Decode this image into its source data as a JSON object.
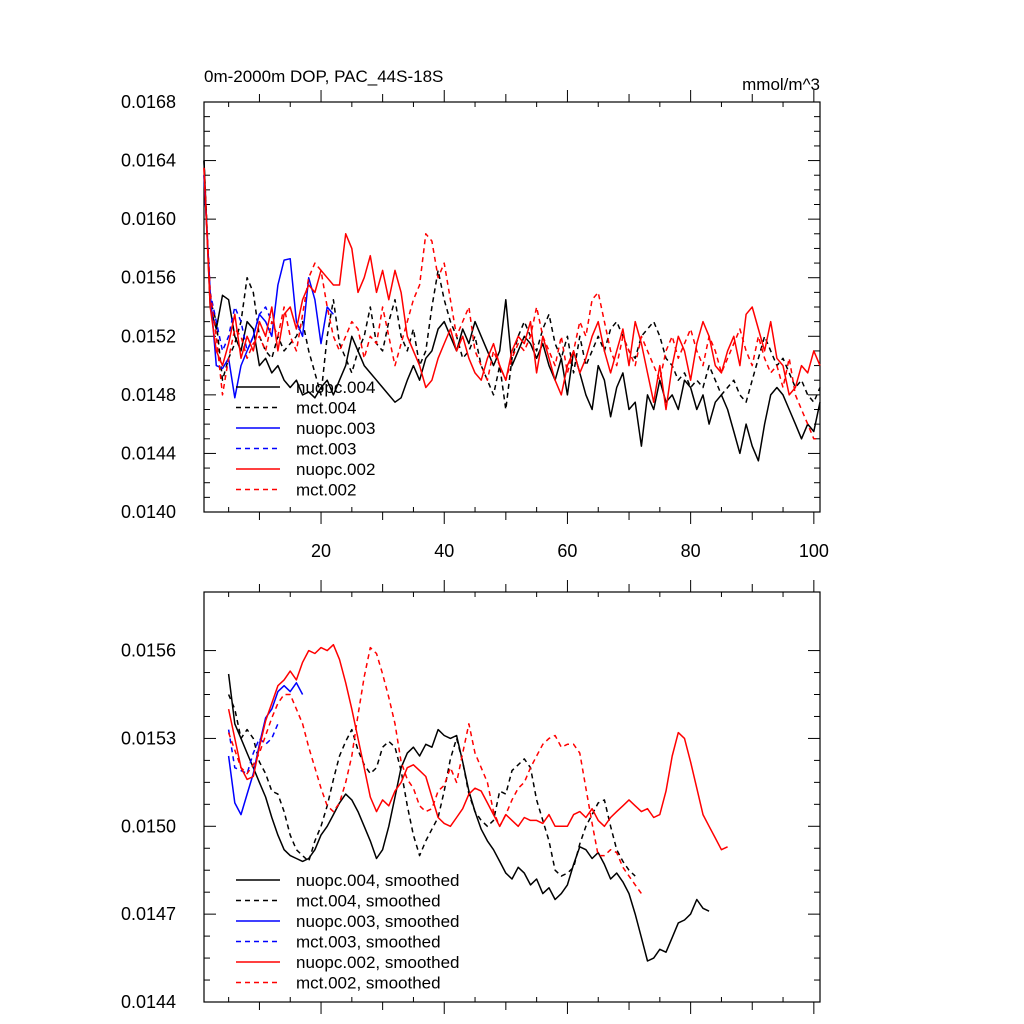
{
  "chart_data": [
    {
      "type": "line",
      "title": "0m-2000m DOP, PAC_44S-18S",
      "units": "mmol/m^3",
      "xlim": [
        1,
        101
      ],
      "ylim": [
        0.014,
        0.0168
      ],
      "xticks": [
        20,
        40,
        60,
        80,
        100
      ],
      "yticks": [
        0.014,
        0.0144,
        0.0148,
        0.0152,
        0.0156,
        0.016,
        0.0164,
        0.0168
      ],
      "ytick_labels": [
        "0.0140",
        "0.0144",
        "0.0148",
        "0.0152",
        "0.0156",
        "0.0160",
        "0.0164",
        "0.0168"
      ],
      "xtick_labels": [
        "20",
        "40",
        "60",
        "80",
        "100"
      ],
      "legend_position": "bottom-left",
      "series": [
        {
          "name": "nuopc.004",
          "color": "#000000",
          "dash": false,
          "x_start": 1,
          "values": [
            0.0164,
            0.0154,
            0.01525,
            0.01548,
            0.01545,
            0.0152,
            0.0151,
            0.0153,
            0.01525,
            0.015,
            0.01505,
            0.01495,
            0.015,
            0.0149,
            0.01485,
            0.0149,
            0.0148,
            0.01482,
            0.01478,
            0.01485,
            0.0149,
            0.0148,
            0.0149,
            0.015,
            0.0152,
            0.0151,
            0.015,
            0.01495,
            0.0149,
            0.01485,
            0.0148,
            0.01475,
            0.01478,
            0.0149,
            0.015,
            0.0149,
            0.01505,
            0.0151,
            0.01525,
            0.0153,
            0.0152,
            0.0151,
            0.01525,
            0.01515,
            0.0153,
            0.0152,
            0.0151,
            0.015,
            0.0151,
            0.01545,
            0.015,
            0.0151,
            0.0152,
            0.01515,
            0.01505,
            0.01515,
            0.015,
            0.0149,
            0.01505,
            0.0148,
            0.0151,
            0.01495,
            0.0148,
            0.0147,
            0.015,
            0.0149,
            0.01465,
            0.01485,
            0.01495,
            0.0147,
            0.01475,
            0.01445,
            0.0148,
            0.0147,
            0.0149,
            0.01475,
            0.0148,
            0.0147,
            0.0149,
            0.01485,
            0.0147,
            0.0148,
            0.0146,
            0.01475,
            0.0148,
            0.0147,
            0.01455,
            0.0144,
            0.0146,
            0.01445,
            0.01435,
            0.0146,
            0.0148,
            0.01485,
            0.0148,
            0.0147,
            0.0146,
            0.0145,
            0.0146,
            0.01455,
            0.01475
          ]
        },
        {
          "name": "mct.004",
          "color": "#000000",
          "dash": true,
          "x_start": 1,
          "values": [
            0.0164,
            0.01545,
            0.0153,
            0.0149,
            0.01505,
            0.01515,
            0.0153,
            0.0156,
            0.0155,
            0.0152,
            0.0151,
            0.01505,
            0.0152,
            0.0151,
            0.01515,
            0.0152,
            0.0153,
            0.0151,
            0.01495,
            0.0148,
            0.0152,
            0.01545,
            0.01515,
            0.01505,
            0.01495,
            0.0151,
            0.0152,
            0.0154,
            0.01515,
            0.0151,
            0.0153,
            0.01545,
            0.0152,
            0.0151,
            0.01525,
            0.015,
            0.0151,
            0.0154,
            0.01565,
            0.01545,
            0.0153,
            0.0152,
            0.01505,
            0.0151,
            0.0152,
            0.015,
            0.0149,
            0.0148,
            0.015,
            0.0147,
            0.01505,
            0.0152,
            0.0153,
            0.0152,
            0.0151,
            0.01525,
            0.01535,
            0.01515,
            0.01505,
            0.0152,
            0.01495,
            0.0152,
            0.015,
            0.0151,
            0.0152,
            0.0151,
            0.01525,
            0.0153,
            0.0152,
            0.0151,
            0.01505,
            0.0152,
            0.01525,
            0.0153,
            0.0152,
            0.01505,
            0.015,
            0.0149,
            0.01495,
            0.01485,
            0.0149,
            0.01485,
            0.015,
            0.0149,
            0.0148,
            0.01485,
            0.0149,
            0.0148,
            0.01475,
            0.0149,
            0.01505,
            0.0152,
            0.0151,
            0.015,
            0.01505,
            0.01495,
            0.01485,
            0.0149,
            0.0148,
            0.01475,
            0.01485
          ]
        },
        {
          "name": "nuopc.003",
          "color": "#0000ff",
          "dash": false,
          "x_start": 1,
          "values": [
            0.0163,
            0.0155,
            0.015,
            0.01498,
            0.01505,
            0.01478,
            0.015,
            0.0151,
            0.0152,
            0.01535,
            0.0153,
            0.0152,
            0.01555,
            0.01572,
            0.01573,
            0.0153,
            0.0152,
            0.0156,
            0.01545,
            0.01515,
            0.0154,
            0.01535
          ]
        },
        {
          "name": "mct.003",
          "color": "#0000ff",
          "dash": true,
          "x_start": 1,
          "values": [
            0.0163,
            0.0155,
            0.0153,
            0.0151,
            0.0152,
            0.0154,
            0.0153,
            0.0151,
            0.0152,
            0.01535,
            0.0154,
            0.0153
          ]
        },
        {
          "name": "nuopc.002",
          "color": "#ff0000",
          "dash": false,
          "x_start": 1,
          "values": [
            0.01635,
            0.0154,
            0.0151,
            0.015,
            0.01515,
            0.01535,
            0.01505,
            0.0152,
            0.0151,
            0.0153,
            0.0152,
            0.0154,
            0.0151,
            0.01535,
            0.0154,
            0.01525,
            0.01545,
            0.01555,
            0.0155,
            0.01565,
            0.0156,
            0.01555,
            0.01555,
            0.0159,
            0.0158,
            0.0155,
            0.0156,
            0.01575,
            0.0155,
            0.01565,
            0.01545,
            0.01565,
            0.0155,
            0.0152,
            0.0151,
            0.015,
            0.01485,
            0.0149,
            0.01505,
            0.01515,
            0.01525,
            0.0151,
            0.0152,
            0.01505,
            0.01495,
            0.0149,
            0.01505,
            0.01515,
            0.015,
            0.0149,
            0.0151,
            0.0152,
            0.01515,
            0.0153,
            0.01495,
            0.0152,
            0.01505,
            0.0149,
            0.0148,
            0.015,
            0.0151,
            0.01495,
            0.01505,
            0.0152,
            0.0153,
            0.0151,
            0.01495,
            0.0151,
            0.01525,
            0.015,
            0.0153,
            0.01515,
            0.01495,
            0.01475,
            0.015,
            0.0147,
            0.015,
            0.0152,
            0.0151,
            0.0149,
            0.01515,
            0.0153,
            0.0152,
            0.015,
            0.01495,
            0.0151,
            0.0152,
            0.015,
            0.01535,
            0.0154,
            0.01525,
            0.0151,
            0.0153,
            0.01505,
            0.015,
            0.0148,
            0.01485,
            0.015,
            0.01495,
            0.0151,
            0.015
          ]
        },
        {
          "name": "mct.002",
          "color": "#ff0000",
          "dash": true,
          "x_start": 1,
          "values": [
            0.01635,
            0.0155,
            0.0152,
            0.0148,
            0.01505,
            0.01525,
            0.0152,
            0.01505,
            0.01515,
            0.0152,
            0.0151,
            0.0153,
            0.0152,
            0.0154,
            0.0152,
            0.0151,
            0.01535,
            0.0156,
            0.0157,
            0.01565,
            0.0154,
            0.0152,
            0.0151,
            0.0152,
            0.0153,
            0.01525,
            0.01505,
            0.0152,
            0.01515,
            0.0154,
            0.0152,
            0.015,
            0.01515,
            0.0153,
            0.01545,
            0.01555,
            0.0159,
            0.01585,
            0.0156,
            0.0157,
            0.01545,
            0.0152,
            0.0153,
            0.0154,
            0.0151,
            0.015,
            0.0149,
            0.0151,
            0.015,
            0.0149,
            0.01505,
            0.01515,
            0.0151,
            0.0152,
            0.0154,
            0.0152,
            0.0151,
            0.015,
            0.0152,
            0.01495,
            0.0151,
            0.0153,
            0.0152,
            0.01545,
            0.0155,
            0.0153,
            0.0151,
            0.015,
            0.0152,
            0.0151,
            0.015,
            0.0152,
            0.0151,
            0.015,
            0.0149,
            0.0151,
            0.0152,
            0.01505,
            0.01515,
            0.01525,
            0.0151,
            0.015,
            0.0152,
            0.0151,
            0.01495,
            0.01505,
            0.01515,
            0.01525,
            0.0151,
            0.015,
            0.0152,
            0.01505,
            0.01495,
            0.015,
            0.01485,
            0.01505,
            0.0148,
            0.0147,
            0.0146,
            0.0145,
            0.0145
          ]
        }
      ]
    },
    {
      "type": "line",
      "xlim": [
        1,
        101
      ],
      "ylim": [
        0.0144,
        0.0158
      ],
      "xticks": [
        20,
        40,
        60,
        80,
        100
      ],
      "yticks": [
        0.0144,
        0.0147,
        0.015,
        0.0153,
        0.0156
      ],
      "ytick_labels": [
        "0.0144",
        "0.0147",
        "0.0150",
        "0.0153",
        "0.0156"
      ],
      "legend_position": "bottom-left",
      "series": [
        {
          "name": "nuopc.004, smoothed",
          "color": "#000000",
          "dash": false,
          "x_start": 5,
          "values": [
            0.01552,
            0.01535,
            0.0153,
            0.01525,
            0.0152,
            0.01515,
            0.0151,
            0.01503,
            0.01497,
            0.01492,
            0.0149,
            0.01489,
            0.01488,
            0.01489,
            0.01492,
            0.01497,
            0.015,
            0.01504,
            0.01508,
            0.01511,
            0.01509,
            0.01505,
            0.015,
            0.01495,
            0.01489,
            0.01492,
            0.015,
            0.0151,
            0.0152,
            0.01525,
            0.01527,
            0.01524,
            0.01528,
            0.01527,
            0.01533,
            0.01531,
            0.0153,
            0.01531,
            0.01522,
            0.01512,
            0.01505,
            0.01499,
            0.01495,
            0.01492,
            0.01488,
            0.01484,
            0.01482,
            0.01486,
            0.01484,
            0.0148,
            0.01482,
            0.01477,
            0.01479,
            0.01475,
            0.01477,
            0.0148,
            0.01487,
            0.01493,
            0.01492,
            0.01489,
            0.01491,
            0.01487,
            0.01482,
            0.01484,
            0.01481,
            0.01477,
            0.0147,
            0.01462,
            0.01454,
            0.01455,
            0.01458,
            0.01457,
            0.01462,
            0.01467,
            0.01468,
            0.0147,
            0.01475,
            0.01472,
            0.01471
          ]
        },
        {
          "name": "mct.004, smoothed",
          "color": "#000000",
          "dash": true,
          "x_start": 5,
          "values": [
            0.01545,
            0.0154,
            0.0153,
            0.01533,
            0.0153,
            0.01522,
            0.01518,
            0.01512,
            0.01511,
            0.01505,
            0.01497,
            0.01492,
            0.0149,
            0.01488,
            0.01495,
            0.015,
            0.01507,
            0.01516,
            0.01524,
            0.01529,
            0.01533,
            0.01526,
            0.01521,
            0.01518,
            0.0152,
            0.01527,
            0.01529,
            0.01527,
            0.01519,
            0.01507,
            0.01497,
            0.0149,
            0.01495,
            0.01499,
            0.01503,
            0.01512,
            0.01523,
            0.0153,
            0.01522,
            0.01511,
            0.01505,
            0.01502,
            0.015,
            0.01502,
            0.01512,
            0.01511,
            0.01519,
            0.01521,
            0.01523,
            0.0152,
            0.01509,
            0.01502,
            0.01495,
            0.01485,
            0.01483,
            0.01484,
            0.01486,
            0.01494,
            0.015,
            0.01504,
            0.01508,
            0.01509,
            0.015,
            0.01492,
            0.01488,
            0.01485,
            0.01483
          ]
        },
        {
          "name": "nuopc.003, smoothed",
          "color": "#0000ff",
          "dash": false,
          "x_start": 5,
          "values": [
            0.01524,
            0.01508,
            0.01504,
            0.01511,
            0.01518,
            0.01528,
            0.01537,
            0.0154,
            0.01546,
            0.01548,
            0.01546,
            0.01549,
            0.01545
          ]
        },
        {
          "name": "mct.003, smoothed",
          "color": "#0000ff",
          "dash": true,
          "x_start": 5,
          "values": [
            0.01533,
            0.0152,
            0.01519,
            0.01518,
            0.01525,
            0.0153,
            0.01528,
            0.0153,
            0.01535
          ]
        },
        {
          "name": "nuopc.002, smoothed",
          "color": "#ff0000",
          "dash": false,
          "x_start": 5,
          "values": [
            0.0154,
            0.0153,
            0.0152,
            0.01516,
            0.01517,
            0.01527,
            0.01536,
            0.01542,
            0.01548,
            0.0155,
            0.01553,
            0.0155,
            0.01556,
            0.0156,
            0.01559,
            0.01561,
            0.0156,
            0.01562,
            0.01557,
            0.01549,
            0.0154,
            0.0153,
            0.0152,
            0.0151,
            0.01505,
            0.01509,
            0.01507,
            0.01512,
            0.01515,
            0.0152,
            0.01521,
            0.01519,
            0.01517,
            0.0151,
            0.01503,
            0.01501,
            0.015,
            0.01503,
            0.01506,
            0.01511,
            0.01513,
            0.01512,
            0.01508,
            0.01504,
            0.015,
            0.01504,
            0.01502,
            0.015,
            0.01503,
            0.01502,
            0.01502,
            0.01501,
            0.01504,
            0.015,
            0.015,
            0.015,
            0.01504,
            0.01505,
            0.01503,
            0.01506,
            0.01502,
            0.015,
            0.01503,
            0.01505,
            0.01507,
            0.01509,
            0.01507,
            0.01505,
            0.01506,
            0.01503,
            0.01504,
            0.01512,
            0.01524,
            0.01532,
            0.0153,
            0.01522,
            0.01513,
            0.01504,
            0.015,
            0.01496,
            0.01492,
            0.01493
          ]
        },
        {
          "name": "mct.002, smoothed",
          "color": "#ff0000",
          "dash": true,
          "x_start": 5,
          "values": [
            0.01532,
            0.01526,
            0.0152,
            0.01518,
            0.01521,
            0.01525,
            0.01531,
            0.01537,
            0.01542,
            0.01545,
            0.01545,
            0.0154,
            0.01535,
            0.01527,
            0.0152,
            0.01513,
            0.01507,
            0.01505,
            0.01508,
            0.01515,
            0.01524,
            0.01538,
            0.01551,
            0.01561,
            0.01559,
            0.01552,
            0.01544,
            0.01535,
            0.01522,
            0.01516,
            0.01513,
            0.01507,
            0.01505,
            0.01506,
            0.01512,
            0.01514,
            0.0152,
            0.01515,
            0.01525,
            0.01535,
            0.01525,
            0.0152,
            0.01515,
            0.01505,
            0.015,
            0.01504,
            0.01509,
            0.01513,
            0.01515,
            0.0152,
            0.01524,
            0.01528,
            0.0153,
            0.01531,
            0.01527,
            0.01528,
            0.01528,
            0.01525,
            0.01513,
            0.01501,
            0.0149,
            0.0149,
            0.01492,
            0.01491,
            0.01486,
            0.01483,
            0.0148,
            0.01477
          ]
        }
      ]
    }
  ]
}
